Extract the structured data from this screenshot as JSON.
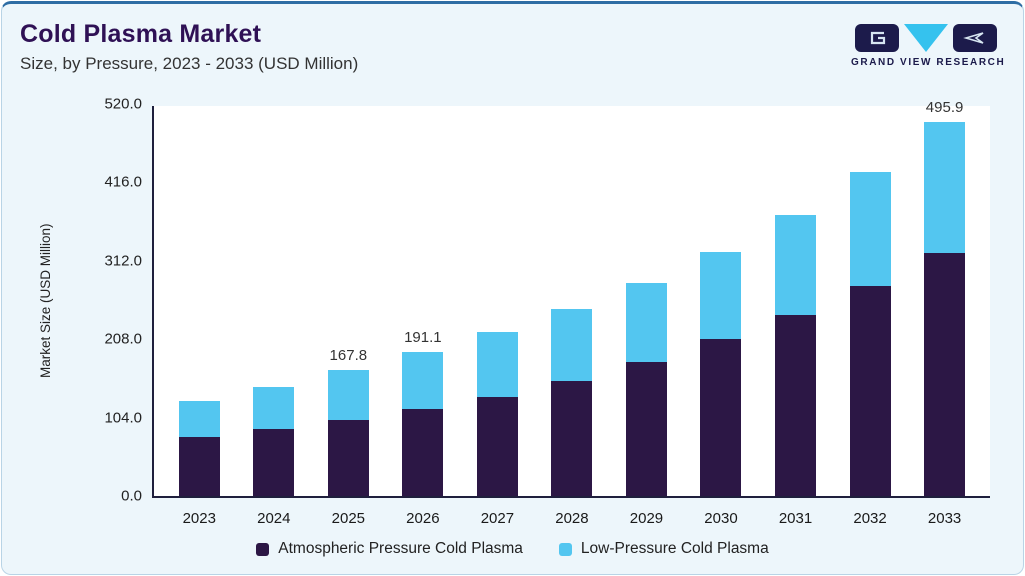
{
  "header": {
    "title": "Cold Plasma Market",
    "subtitle": "Size, by Pressure, 2023 - 2033 (USD Million)"
  },
  "logo": {
    "text": "GRAND VIEW RESEARCH"
  },
  "chart_data": {
    "type": "bar",
    "stacked": true,
    "title": "Cold Plasma Market Size, by Pressure, 2023 - 2033 (USD Million)",
    "xlabel": "",
    "ylabel": "Market Size (USD Million)",
    "ylim": [
      0,
      520
    ],
    "yticks": [
      0.0,
      104.0,
      208.0,
      312.0,
      416.0,
      520.0
    ],
    "grid": false,
    "legend_position": "bottom",
    "categories": [
      "2023",
      "2024",
      "2025",
      "2026",
      "2027",
      "2028",
      "2029",
      "2030",
      "2031",
      "2032",
      "2033"
    ],
    "series": [
      {
        "name": "Atmospheric Pressure Cold Plasma",
        "color": "#2c1745",
        "values": [
          78.0,
          89.0,
          101.0,
          115.0,
          132.0,
          153.0,
          178.0,
          208.0,
          240.0,
          278.0,
          322.0
        ]
      },
      {
        "name": "Low-Pressure Cold Plasma",
        "color": "#53c6f0",
        "values": [
          47.5,
          56.0,
          66.8,
          76.1,
          85.5,
          94.5,
          105.0,
          116.0,
          133.0,
          152.0,
          173.9
        ]
      }
    ],
    "totals": [
      125.5,
      145.0,
      167.8,
      191.1,
      217.5,
      247.5,
      283.0,
      324.0,
      373.0,
      430.0,
      495.9
    ],
    "total_labels": [
      "",
      "",
      "167.8",
      "191.1",
      "",
      "",
      "",
      "",
      "",
      "",
      "495.9"
    ]
  }
}
